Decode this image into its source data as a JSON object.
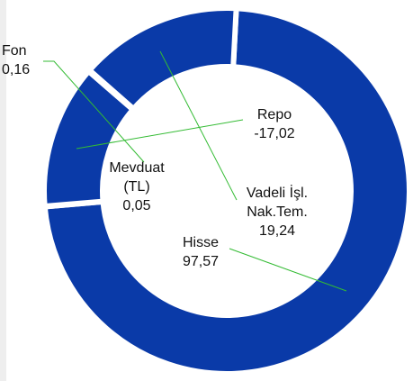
{
  "chart_data": {
    "type": "donut",
    "categories": [
      "Hisse",
      "Mevduat (TL)",
      "Repo",
      "Fon",
      "Vadeli İşl. Nak.Tem."
    ],
    "values": [
      97.57,
      0.05,
      -17.02,
      0.16,
      19.24
    ],
    "value_labels": [
      "97,57",
      "0,05",
      "-17,02",
      "0,16",
      "19,24"
    ],
    "color": "#0a3aa8"
  }
}
